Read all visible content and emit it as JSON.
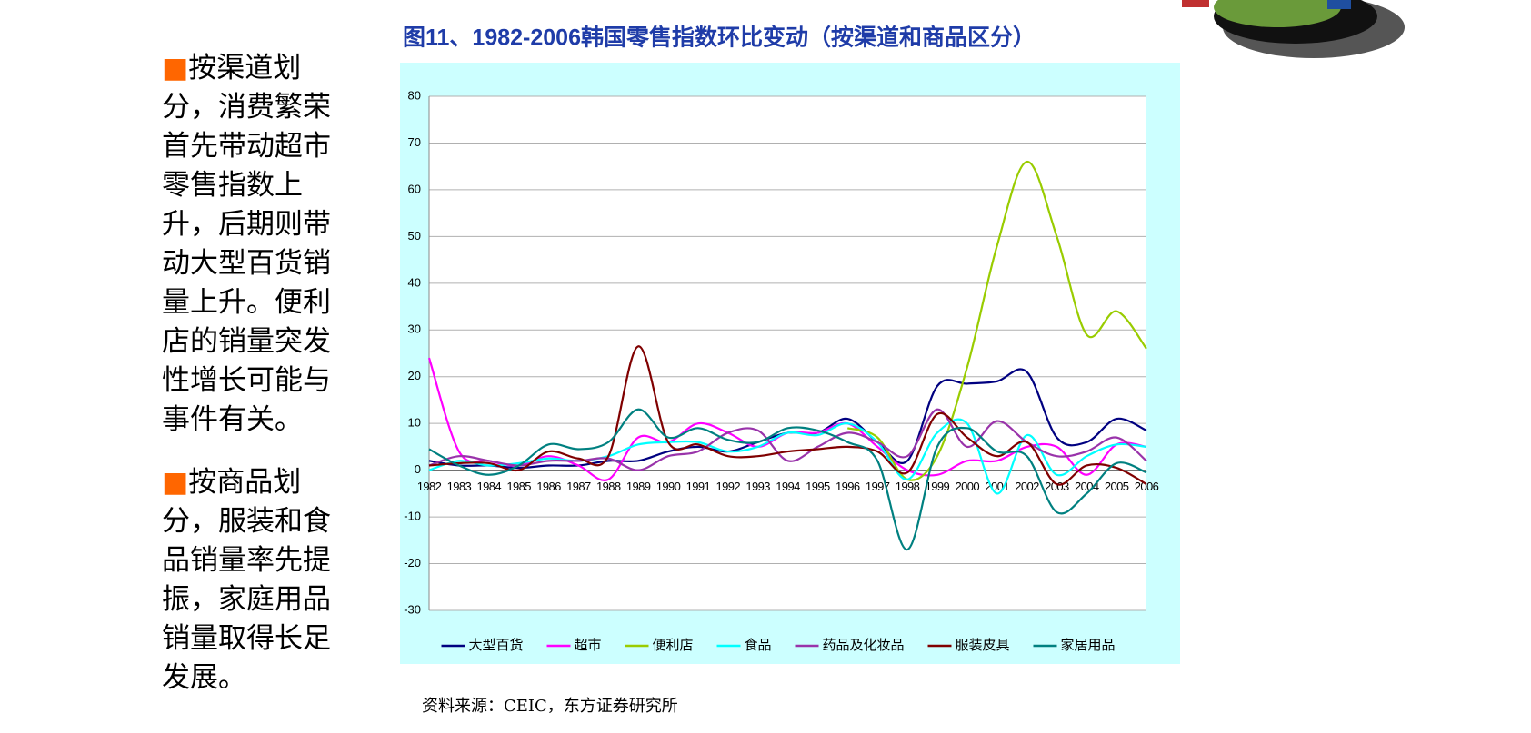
{
  "bullets": [
    "按渠道划分，消费繁荣首先带动超市零售指数上升，后期则带动大型百货销量上升。便利店的销量突发性增长可能与事件有关。",
    "按商品划分，服装和食品销量率先提振，家庭用品销量取得长足发展。"
  ],
  "source": "资料来源：CEIC，东方证券研究所",
  "chart_data": {
    "type": "line",
    "title": "图11、1982-2006韩国零售指数环比变动（按渠道和商品区分）",
    "categories": [
      "1982",
      "1983",
      "1984",
      "1985",
      "1986",
      "1987",
      "1988",
      "1989",
      "1990",
      "1991",
      "1992",
      "1993",
      "1994",
      "1995",
      "1996",
      "1997",
      "1998",
      "1999",
      "2000",
      "2001",
      "2002",
      "2003",
      "2004",
      "2005",
      "2006"
    ],
    "ylim": [
      -30,
      80
    ],
    "yticks": [
      -30,
      -20,
      -10,
      0,
      10,
      20,
      30,
      40,
      50,
      60,
      70,
      80
    ],
    "grid": true,
    "legend": "bottom",
    "series": [
      {
        "name": "大型百货",
        "color": "#000080",
        "values": [
          2,
          1,
          1,
          0.5,
          1,
          1,
          2,
          2,
          4,
          5,
          4,
          6,
          8,
          8,
          11,
          6,
          2,
          18,
          18.5,
          19,
          21,
          7,
          6,
          11,
          8.5
        ]
      },
      {
        "name": "超市",
        "color": "#ff00ff",
        "values": [
          24,
          4,
          2,
          1,
          3,
          1,
          -2,
          7,
          6,
          10,
          8,
          5,
          8,
          8,
          10,
          5,
          0,
          -1,
          2,
          2,
          5,
          5,
          -1,
          5.5,
          5
        ]
      },
      {
        "name": "便利店",
        "color": "#99cc00",
        "values": [
          null,
          null,
          null,
          null,
          null,
          null,
          null,
          null,
          null,
          null,
          null,
          null,
          null,
          null,
          9,
          7,
          -2,
          3,
          22,
          48,
          66,
          50,
          29,
          34,
          26
        ]
      },
      {
        "name": "食品",
        "color": "#00ffff",
        "values": [
          0,
          2,
          1,
          1.5,
          2.5,
          2,
          3,
          5.5,
          6,
          6,
          4,
          5,
          8,
          7.5,
          10,
          6,
          -2,
          8,
          10,
          -5,
          7.5,
          -1,
          3,
          5.5,
          5
        ]
      },
      {
        "name": "药品及化妆品",
        "color": "#9933aa",
        "values": [
          1,
          3,
          2,
          1,
          2,
          2,
          2.5,
          0,
          3,
          4,
          8,
          8.5,
          2,
          5,
          8,
          6,
          3,
          13,
          5,
          10.5,
          6,
          3,
          4,
          7,
          2
        ]
      },
      {
        "name": "服装皮具",
        "color": "#800000",
        "values": [
          1,
          1.5,
          1.5,
          0,
          4,
          2.5,
          3,
          26.5,
          6,
          5.5,
          3,
          3,
          4,
          4.5,
          5,
          4,
          -0.5,
          12,
          7,
          3,
          6,
          -3,
          1,
          0.5,
          -3
        ]
      },
      {
        "name": "家居用品",
        "color": "#008080",
        "values": [
          4.5,
          1,
          -1,
          1,
          5.5,
          4.5,
          6,
          13,
          7,
          9,
          6.5,
          6,
          9,
          8.5,
          6,
          2,
          -17,
          5,
          9,
          4,
          3,
          -9,
          -5,
          1.5,
          -0.5
        ]
      }
    ]
  }
}
